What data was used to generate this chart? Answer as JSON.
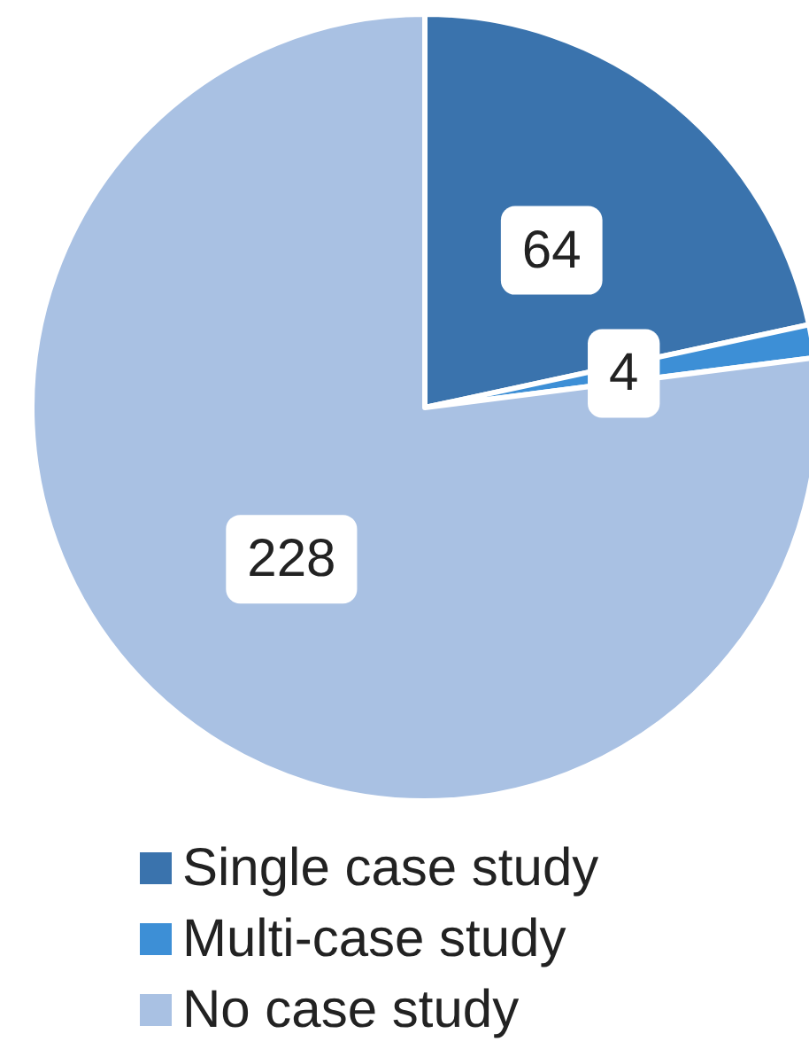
{
  "chart_data": {
    "type": "pie",
    "categories": [
      "Single case study",
      "Multi-case study",
      "No case study"
    ],
    "values": [
      64,
      4,
      228
    ],
    "colors": [
      "#3a73ad",
      "#3d8fd6",
      "#a9c1e3"
    ],
    "data_labels": true,
    "legend": "bottom"
  }
}
